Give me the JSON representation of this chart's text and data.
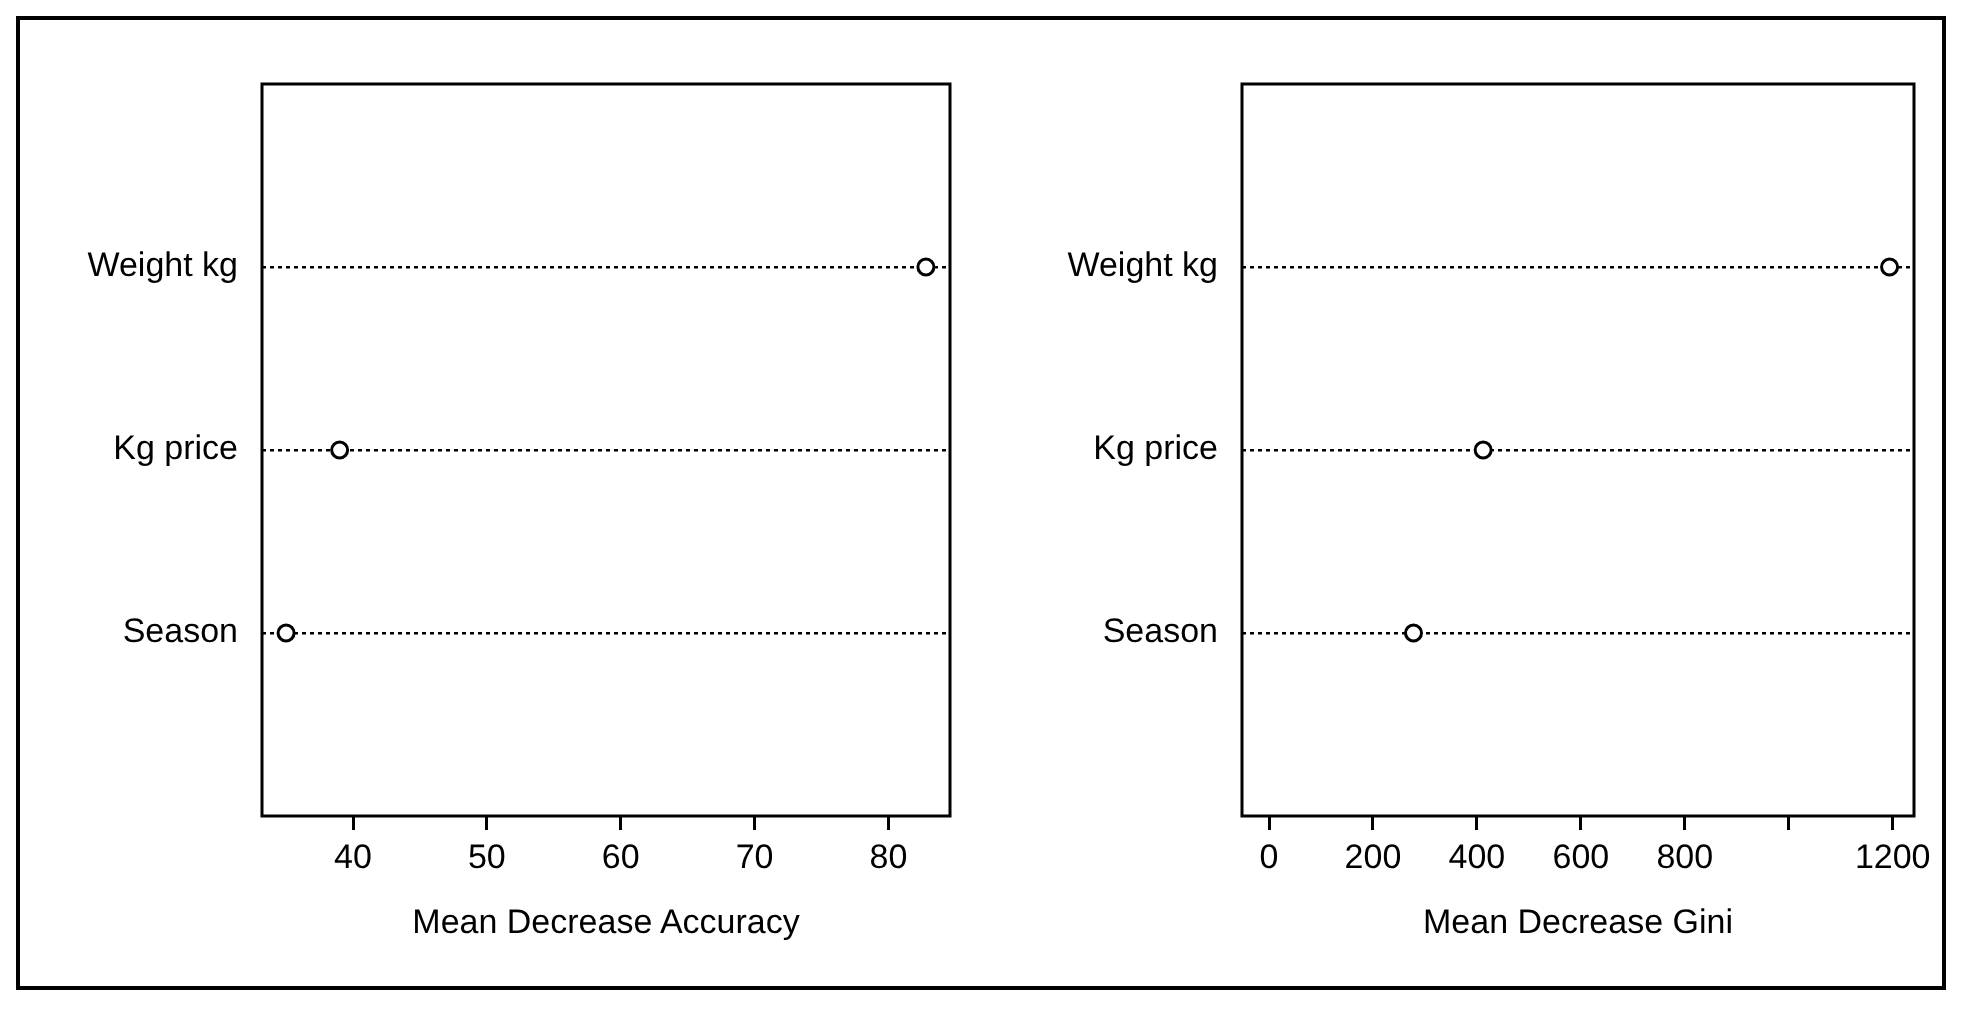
{
  "chart_data": [
    {
      "type": "scatter",
      "orientation": "horizontal",
      "categories": [
        "Weight kg",
        "Kg price",
        "Season"
      ],
      "xlabel": "Mean Decrease Accuracy",
      "series": [
        {
          "color": "#000000",
          "values": [
            82.8,
            39.0,
            35.0
          ]
        }
      ],
      "xlim": [
        33.2,
        84.6
      ],
      "xticks": [
        40,
        50,
        60,
        70,
        80
      ],
      "grid": "y",
      "marker": "circle",
      "line_style": "dotted"
    },
    {
      "type": "scatter",
      "orientation": "horizontal",
      "categories": [
        "Weight kg",
        "Kg price",
        "Season"
      ],
      "xlabel": "Mean Decrease Gini",
      "series": [
        {
          "color": "#000000",
          "values": [
            1194,
            412,
            278
          ]
        }
      ],
      "xlim": [
        -52,
        1241
      ],
      "xticks": [
        0,
        200,
        400,
        600,
        800,
        {
          "value": 1000,
          "label": null
        },
        1200
      ],
      "grid": "y",
      "marker": "circle",
      "line_style": "dotted"
    }
  ]
}
